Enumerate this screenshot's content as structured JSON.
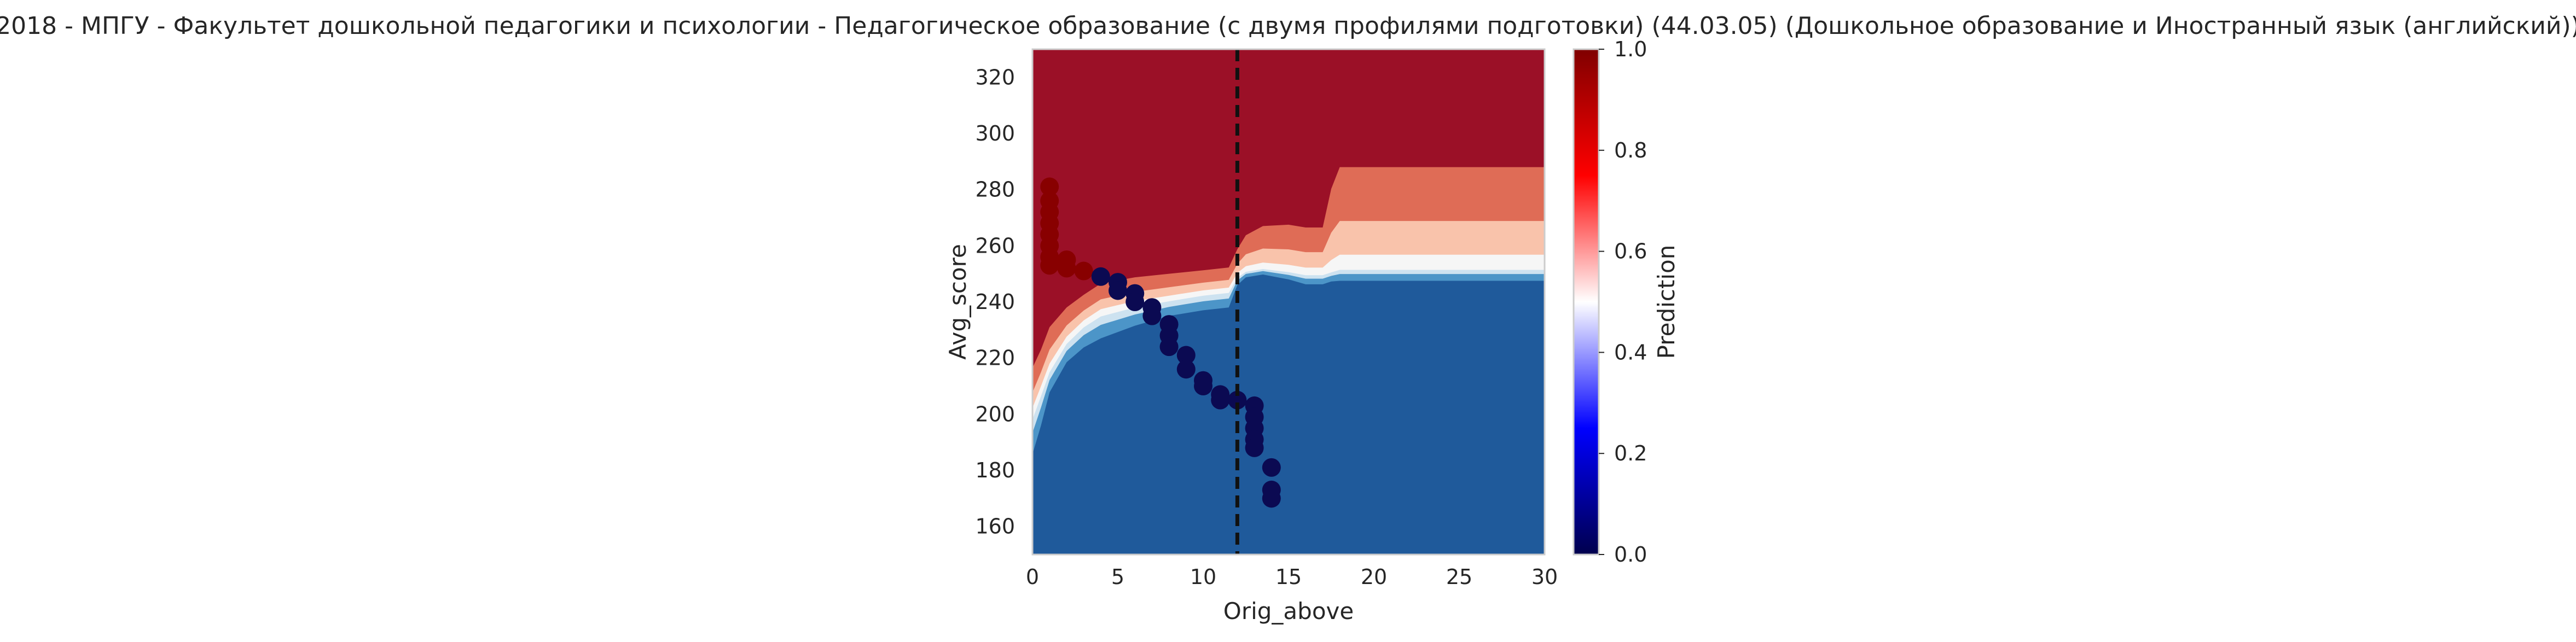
{
  "chart_data": {
    "type": "heatmap",
    "title": "2018 - МПГУ - Факультет дошкольной педагогики и психологии - Педагогическое образование (с двумя профилями подготовки) (44.03.05) (Дошкольное образование и Иностранный язык (английский))",
    "xlabel": "Orig_above",
    "ylabel": "Avg_score",
    "xlim": [
      0,
      30
    ],
    "ylim": [
      150,
      330
    ],
    "xticks": [
      0,
      5,
      10,
      15,
      20,
      25,
      30
    ],
    "yticks": [
      160,
      180,
      200,
      220,
      240,
      260,
      280,
      300,
      320
    ],
    "grid": false,
    "threshold_x": 12,
    "colorbar": {
      "label": "Prediction",
      "range": [
        0,
        1
      ],
      "ticks": [
        0.0,
        0.2,
        0.4,
        0.6,
        0.8,
        1.0
      ],
      "tick_labels": [
        "0.0",
        "0.2",
        "0.4",
        "0.6",
        "0.8",
        "1.0"
      ],
      "colormap": "seismic"
    },
    "contour_levels": [
      {
        "level": 0.0,
        "color": "#1f5a9b"
      },
      {
        "level": 0.25,
        "color": "#4c95c8"
      },
      {
        "level": 0.4,
        "color": "#cde2f0"
      },
      {
        "level": 0.5,
        "color": "#f6f6f6"
      },
      {
        "level": 0.6,
        "color": "#f9c3ab"
      },
      {
        "level": 0.75,
        "color": "#df6c56"
      },
      {
        "level": 1.0,
        "color": "#9b1027"
      }
    ],
    "points": [
      {
        "x": 1,
        "y": 281,
        "class": 1
      },
      {
        "x": 1,
        "y": 276,
        "class": 1
      },
      {
        "x": 1,
        "y": 272,
        "class": 1
      },
      {
        "x": 1,
        "y": 268,
        "class": 1
      },
      {
        "x": 1,
        "y": 264,
        "class": 1
      },
      {
        "x": 1,
        "y": 260,
        "class": 1
      },
      {
        "x": 1,
        "y": 256,
        "class": 1
      },
      {
        "x": 1,
        "y": 253,
        "class": 1
      },
      {
        "x": 2,
        "y": 255,
        "class": 1
      },
      {
        "x": 2,
        "y": 252,
        "class": 1
      },
      {
        "x": 3,
        "y": 251,
        "class": 1
      },
      {
        "x": 4,
        "y": 249,
        "class": 0
      },
      {
        "x": 5,
        "y": 247,
        "class": 0
      },
      {
        "x": 5,
        "y": 244,
        "class": 0
      },
      {
        "x": 6,
        "y": 243,
        "class": 0
      },
      {
        "x": 6,
        "y": 240,
        "class": 0
      },
      {
        "x": 7,
        "y": 238,
        "class": 0
      },
      {
        "x": 7,
        "y": 235,
        "class": 0
      },
      {
        "x": 8,
        "y": 232,
        "class": 0
      },
      {
        "x": 8,
        "y": 228,
        "class": 0
      },
      {
        "x": 8,
        "y": 224,
        "class": 0
      },
      {
        "x": 9,
        "y": 221,
        "class": 0
      },
      {
        "x": 9,
        "y": 216,
        "class": 0
      },
      {
        "x": 10,
        "y": 212,
        "class": 0
      },
      {
        "x": 10,
        "y": 210,
        "class": 0
      },
      {
        "x": 11,
        "y": 207,
        "class": 0
      },
      {
        "x": 11,
        "y": 205,
        "class": 0
      },
      {
        "x": 12,
        "y": 205,
        "class": 0
      },
      {
        "x": 13,
        "y": 203,
        "class": 0
      },
      {
        "x": 13,
        "y": 199,
        "class": 0
      },
      {
        "x": 13,
        "y": 195,
        "class": 0
      },
      {
        "x": 13,
        "y": 191,
        "class": 0
      },
      {
        "x": 13,
        "y": 188,
        "class": 0
      },
      {
        "x": 14,
        "y": 181,
        "class": 0
      },
      {
        "x": 14,
        "y": 173,
        "class": 0
      },
      {
        "x": 14,
        "y": 170,
        "class": 0
      }
    ],
    "point_colors": {
      "class_0": "#0b0a52",
      "class_1": "#880000"
    }
  }
}
